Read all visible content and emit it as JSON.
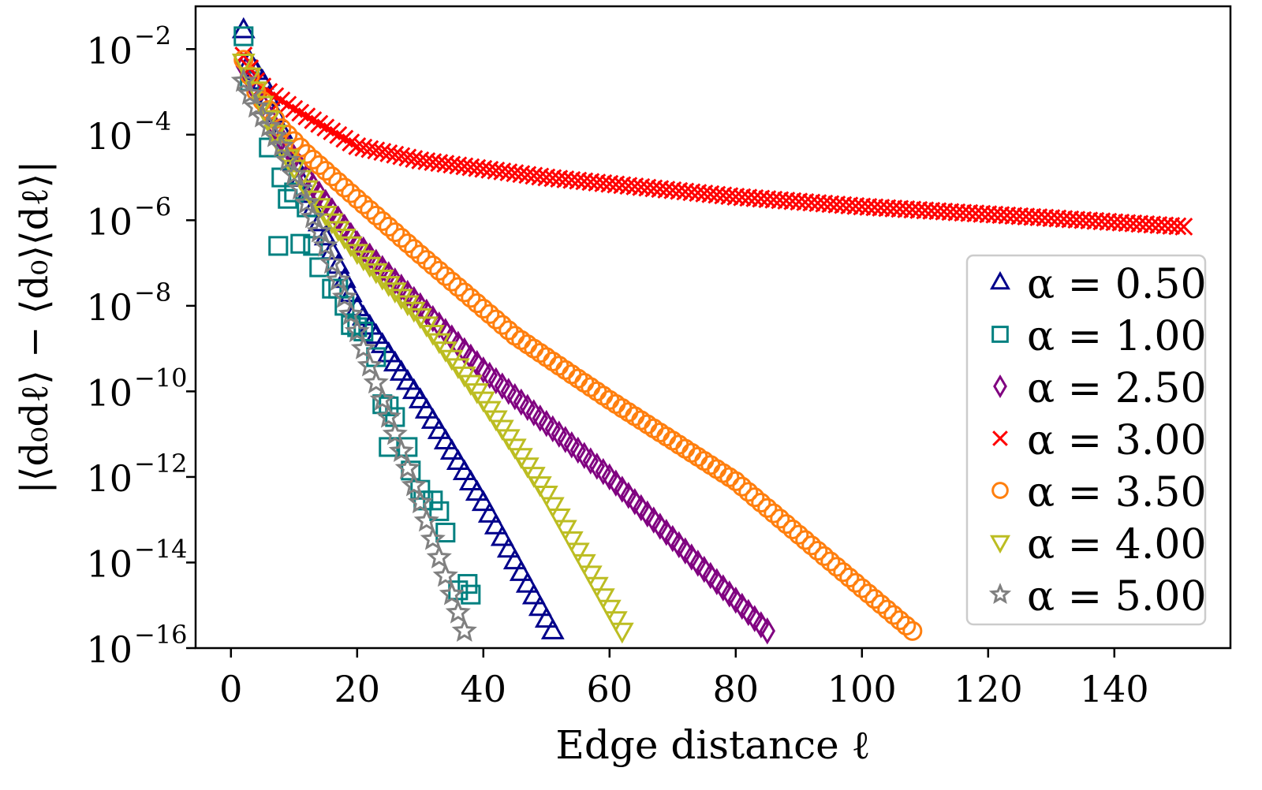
{
  "chart_data": {
    "type": "scatter",
    "title": "",
    "xlabel": "Edge distance ℓ",
    "ylabel": "|⟨d₀dℓ⟩ − ⟨d₀⟩⟨dℓ⟩|",
    "xscale": "linear",
    "yscale": "log",
    "xlim": [
      -5.6,
      158.4
    ],
    "ylim_log10": [
      -16,
      -1
    ],
    "xticks": [
      0,
      20,
      40,
      60,
      80,
      100,
      120,
      140
    ],
    "xtick_labels": [
      "0",
      "20",
      "40",
      "60",
      "80",
      "100",
      "120",
      "140"
    ],
    "yticks_log10": [
      -2,
      -4,
      -6,
      -8,
      -10,
      -12,
      -14,
      -16
    ],
    "ytick_labels": [
      {
        "base": "10",
        "exp": "−2"
      },
      {
        "base": "10",
        "exp": "−4"
      },
      {
        "base": "10",
        "exp": "−6"
      },
      {
        "base": "10",
        "exp": "−8"
      },
      {
        "base": "10",
        "exp": "−10"
      },
      {
        "base": "10",
        "exp": "−12"
      },
      {
        "base": "10",
        "exp": "−14"
      },
      {
        "base": "10",
        "exp": "−16"
      }
    ],
    "grid": false,
    "legend_position": "right",
    "series": [
      {
        "name": "α = 0.50",
        "alpha": "0.50",
        "marker": "triangle-up",
        "color": "#00008b",
        "x_start": 2,
        "x_end": 51,
        "x_step": 1,
        "log10_anchors": [
          [
            2,
            -1.55
          ],
          [
            3,
            -2.3
          ],
          [
            5,
            -2.75
          ],
          [
            8,
            -3.9
          ],
          [
            12,
            -5.4
          ],
          [
            20,
            -8.05
          ],
          [
            30,
            -10.2
          ],
          [
            40,
            -12.6
          ],
          [
            51,
            -15.6
          ]
        ]
      },
      {
        "name": "α = 1.00",
        "alpha": "1.00",
        "marker": "square",
        "color": "#008080",
        "points_log10": [
          [
            2,
            -1.7
          ],
          [
            3,
            -2.75
          ],
          [
            6,
            -4.3
          ],
          [
            8,
            -5.0
          ],
          [
            9,
            -5.5
          ],
          [
            10,
            -5.35
          ],
          [
            12,
            -5.7
          ],
          [
            7.5,
            -6.6
          ],
          [
            11,
            -6.55
          ],
          [
            13,
            -6.6
          ],
          [
            14,
            -7.1
          ],
          [
            16,
            -7.6
          ],
          [
            17,
            -7.6
          ],
          [
            18,
            -8.0
          ],
          [
            19,
            -8.45
          ],
          [
            20,
            -8.5
          ],
          [
            21,
            -8.6
          ],
          [
            23,
            -9.2
          ],
          [
            24,
            -10.3
          ],
          [
            25,
            -10.35
          ],
          [
            26,
            -10.6
          ],
          [
            25,
            -11.3
          ],
          [
            28,
            -11.3
          ],
          [
            28.5,
            -11.85
          ],
          [
            30,
            -12.3
          ],
          [
            30.5,
            -12.55
          ],
          [
            32,
            -12.55
          ],
          [
            33,
            -12.8
          ],
          [
            34,
            -13.3
          ],
          [
            36,
            -14.65
          ],
          [
            37.5,
            -14.5
          ],
          [
            38,
            -14.75
          ]
        ]
      },
      {
        "name": "α = 2.50",
        "alpha": "2.50",
        "marker": "diamond",
        "color": "#800080",
        "x_start": 2,
        "x_end": 85,
        "x_step": 1,
        "log10_anchors": [
          [
            2,
            -2.4
          ],
          [
            5,
            -3.3
          ],
          [
            8,
            -4.1
          ],
          [
            13,
            -5.2
          ],
          [
            20,
            -6.55
          ],
          [
            30,
            -8.0
          ],
          [
            40,
            -9.5
          ],
          [
            60,
            -12.0
          ],
          [
            85,
            -15.6
          ]
        ]
      },
      {
        "name": "α = 3.00",
        "alpha": "3.00",
        "marker": "x",
        "color": "#ff0000",
        "x_start": 2,
        "x_end": 151,
        "x_step": 1,
        "log10_anchors": [
          [
            2,
            -2.15
          ],
          [
            4,
            -2.75
          ],
          [
            6,
            -3.0
          ],
          [
            10,
            -3.4
          ],
          [
            20,
            -4.27
          ],
          [
            30,
            -4.6
          ],
          [
            50,
            -5.0
          ],
          [
            80,
            -5.45
          ],
          [
            100,
            -5.68
          ],
          [
            130,
            -5.95
          ],
          [
            151,
            -6.15
          ]
        ]
      },
      {
        "name": "α = 3.50",
        "alpha": "3.50",
        "marker": "circle",
        "color": "#ff7f0e",
        "x_start": 2,
        "x_end": 108,
        "x_step": 1,
        "log10_anchors": [
          [
            2,
            -2.25
          ],
          [
            4,
            -3.0
          ],
          [
            8,
            -3.85
          ],
          [
            12,
            -4.45
          ],
          [
            20,
            -5.5
          ],
          [
            30,
            -6.8
          ],
          [
            45,
            -8.7
          ],
          [
            60,
            -10.2
          ],
          [
            80,
            -12.1
          ],
          [
            108,
            -15.6
          ]
        ]
      },
      {
        "name": "α = 4.00",
        "alpha": "4.00",
        "marker": "triangle-down",
        "color": "#bcbd22",
        "x_start": 2,
        "x_end": 62,
        "x_step": 1,
        "log10_anchors": [
          [
            2,
            -2.3
          ],
          [
            4,
            -2.95
          ],
          [
            8,
            -4.3
          ],
          [
            13,
            -5.5
          ],
          [
            20,
            -6.75
          ],
          [
            30,
            -8.25
          ],
          [
            40,
            -10.2
          ],
          [
            50,
            -12.4
          ],
          [
            62,
            -15.6
          ]
        ]
      },
      {
        "name": "α = 5.00",
        "alpha": "5.00",
        "marker": "star",
        "color": "#808080",
        "x_start": 2,
        "x_end": 37,
        "x_step": 1,
        "log10_anchors": [
          [
            2,
            -2.75
          ],
          [
            4,
            -3.35
          ],
          [
            8,
            -4.27
          ],
          [
            12,
            -5.6
          ],
          [
            15,
            -6.6
          ],
          [
            20,
            -8.6
          ],
          [
            25,
            -10.6
          ],
          [
            30,
            -12.6
          ],
          [
            37,
            -15.6
          ]
        ]
      }
    ]
  }
}
